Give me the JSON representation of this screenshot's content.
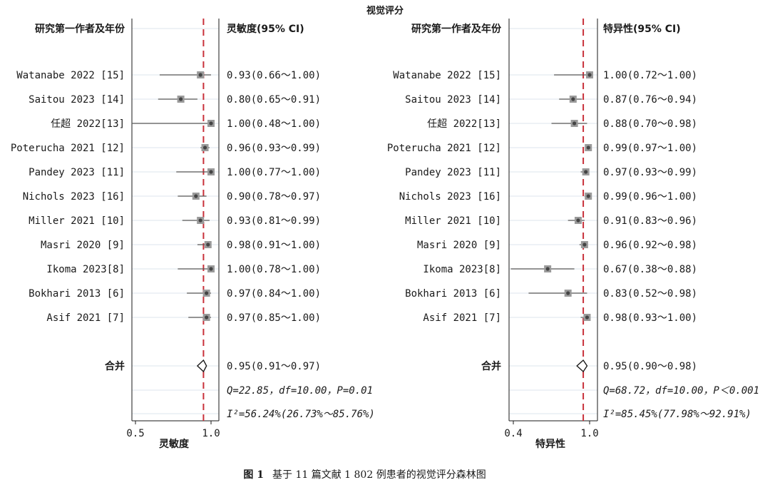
{
  "figure": {
    "title": "视觉评分",
    "caption_label": "图 1",
    "caption_text": "基于 11 篇文献 1 802 例患者的视觉评分森林图"
  },
  "chart_data": [
    {
      "type": "forest",
      "study_header": "研究第一作者及年份",
      "value_header": "灵敏度(95% CI)",
      "xlabel": "灵敏度",
      "xlim": [
        0.5,
        1.0
      ],
      "xticks": [
        0.5,
        1.0
      ],
      "xtick_labels": [
        "0.5",
        "1.0"
      ],
      "reference_line": 0.95,
      "studies": [
        {
          "label": "Watanabe 2022 [15]",
          "est": 0.93,
          "lo": 0.66,
          "hi": 1.0,
          "text": "0.93(0.66～1.00)"
        },
        {
          "label": "Saitou 2023 [14]",
          "est": 0.8,
          "lo": 0.65,
          "hi": 0.91,
          "text": "0.80(0.65～0.91)"
        },
        {
          "label": "任超 2022[13]",
          "est": 1.0,
          "lo": 0.48,
          "hi": 1.0,
          "text": "1.00(0.48～1.00)"
        },
        {
          "label": "Poterucha 2021 [12]",
          "est": 0.96,
          "lo": 0.93,
          "hi": 0.99,
          "text": "0.96(0.93～0.99)"
        },
        {
          "label": "Pandey 2023 [11]",
          "est": 1.0,
          "lo": 0.77,
          "hi": 1.0,
          "text": "1.00(0.77～1.00)"
        },
        {
          "label": "Nichols 2023 [16]",
          "est": 0.9,
          "lo": 0.78,
          "hi": 0.97,
          "text": "0.90(0.78～0.97)"
        },
        {
          "label": "Miller 2021 [10]",
          "est": 0.93,
          "lo": 0.81,
          "hi": 0.99,
          "text": "0.93(0.81～0.99)"
        },
        {
          "label": "Masri 2020 [9]",
          "est": 0.98,
          "lo": 0.91,
          "hi": 1.0,
          "text": "0.98(0.91～1.00)"
        },
        {
          "label": "Ikoma 2023[8]",
          "est": 1.0,
          "lo": 0.78,
          "hi": 1.0,
          "text": "1.00(0.78～1.00)"
        },
        {
          "label": "Bokhari 2013 [6]",
          "est": 0.97,
          "lo": 0.84,
          "hi": 1.0,
          "text": "0.97(0.84～1.00)"
        },
        {
          "label": "Asif 2021 [7]",
          "est": 0.97,
          "lo": 0.85,
          "hi": 1.0,
          "text": "0.97(0.85～1.00)"
        }
      ],
      "pooled": {
        "label": "合并",
        "est": 0.95,
        "lo": 0.91,
        "hi": 0.97,
        "text": "0.95(0.91～0.97)"
      },
      "heterogeneity_q": "Q=22.85，df=10.00，P=0.01",
      "heterogeneity_i2": "I²=56.24%(26.73%～85.76%)"
    },
    {
      "type": "forest",
      "study_header": "研究第一作者及年份",
      "value_header": "特异性(95% CI)",
      "xlabel": "特异性",
      "xlim": [
        0.4,
        1.0
      ],
      "xticks": [
        0.4,
        1.0
      ],
      "xtick_labels": [
        "0.4",
        "1.0"
      ],
      "reference_line": 0.95,
      "studies": [
        {
          "label": "Watanabe 2022 [15]",
          "est": 1.0,
          "lo": 0.72,
          "hi": 1.0,
          "text": "1.00(0.72～1.00)"
        },
        {
          "label": "Saitou 2023 [14]",
          "est": 0.87,
          "lo": 0.76,
          "hi": 0.94,
          "text": "0.87(0.76～0.94)"
        },
        {
          "label": "任超 2022[13]",
          "est": 0.88,
          "lo": 0.7,
          "hi": 0.98,
          "text": "0.88(0.70～0.98)"
        },
        {
          "label": "Poterucha 2021 [12]",
          "est": 0.99,
          "lo": 0.97,
          "hi": 1.0,
          "text": "0.99(0.97～1.00)"
        },
        {
          "label": "Pandey 2023 [11]",
          "est": 0.97,
          "lo": 0.93,
          "hi": 0.99,
          "text": "0.97(0.93～0.99)"
        },
        {
          "label": "Nichols 2023 [16]",
          "est": 0.99,
          "lo": 0.96,
          "hi": 1.0,
          "text": "0.99(0.96～1.00)"
        },
        {
          "label": "Miller 2021 [10]",
          "est": 0.91,
          "lo": 0.83,
          "hi": 0.96,
          "text": "0.91(0.83～0.96)"
        },
        {
          "label": "Masri 2020 [9]",
          "est": 0.96,
          "lo": 0.92,
          "hi": 0.98,
          "text": "0.96(0.92～0.98)"
        },
        {
          "label": "Ikoma 2023[8]",
          "est": 0.67,
          "lo": 0.38,
          "hi": 0.88,
          "text": "0.67(0.38～0.88)"
        },
        {
          "label": "Bokhari 2013 [6]",
          "est": 0.83,
          "lo": 0.52,
          "hi": 0.98,
          "text": "0.83(0.52～0.98)"
        },
        {
          "label": "Asif 2021 [7]",
          "est": 0.98,
          "lo": 0.93,
          "hi": 1.0,
          "text": "0.98(0.93～1.00)"
        }
      ],
      "pooled": {
        "label": "合并",
        "est": 0.95,
        "lo": 0.9,
        "hi": 0.98,
        "text": "0.95(0.90～0.98)"
      },
      "heterogeneity_q": "Q=68.72，df=10.00，P＜0.001",
      "heterogeneity_i2": "I²=85.45%(77.98%～92.91%)"
    }
  ],
  "colors": {
    "reference_line": "#c8303a",
    "gridline": "#dce6ec",
    "ink": "#1a1a1a",
    "marker": "#444444",
    "ci_line": "#555555"
  }
}
